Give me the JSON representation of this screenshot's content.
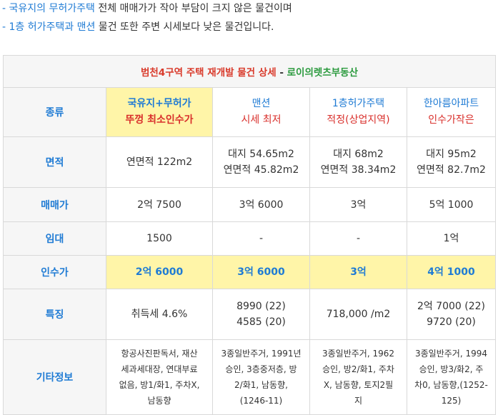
{
  "intro": [
    {
      "highlight": "- 국유지의 무허가주택",
      "rest": " 전체 매매가가 작아 부담이 크지 않은 물건이며"
    },
    {
      "highlight": "- 1층 허가주택과 맨션",
      "rest": " 물건 또한 주변 시세보다 낮은 물건입니다."
    }
  ],
  "table": {
    "title": {
      "red": "범천4구역 주택 재개발 물건 상세",
      "dash": " - ",
      "green": "로이의렛츠부동산"
    },
    "columns": [
      {
        "line1": "국유지+무허가",
        "line2": "뚜껑 최소인수가"
      },
      {
        "line1": "맨션",
        "line2": "시세 최저"
      },
      {
        "line1": "1층허가주택",
        "line2": "적정(상업지역)"
      },
      {
        "line1": "한아름아파트",
        "line2": "인수가작은"
      }
    ],
    "row_labels": {
      "kind": "종류",
      "area": "면적",
      "price": "매매가",
      "lease": "임대",
      "takeover": "인수가",
      "feature": "특징",
      "etc": "기타정보"
    },
    "area": [
      [
        "연면적 122m2"
      ],
      [
        "대지 54.65m2",
        "연면적 45.82m2"
      ],
      [
        "대지 68m2",
        "연면적 38.34m2"
      ],
      [
        "대지 95m2",
        "연면적 82.7m2"
      ]
    ],
    "price": [
      "2억 7500",
      "3억 6000",
      "3억",
      "5억 1000"
    ],
    "lease": [
      "1500",
      "-",
      "-",
      "1억"
    ],
    "takeover": [
      "2억 6000",
      "3억 6000",
      "3억",
      "4억 1000"
    ],
    "feature": [
      [
        "취득세 4.6%"
      ],
      [
        "8990 (22)",
        "4585 (20)"
      ],
      [
        "718,000 /m2"
      ],
      [
        "2억 7000 (22)",
        "9720 (20)"
      ]
    ],
    "etc": [
      [
        "항공사진판독서, 재산",
        "세과세대장, 연대부료",
        "없음, 방1/화1, 주차X,",
        "남동향"
      ],
      [
        "3종일반주거, 1991년",
        "승인, 3층중저층, 방",
        "2/화1, 남동향,",
        "(1246-11)"
      ],
      [
        "3종일반주거, 1962",
        "승인, 방2/화1, 주차",
        "X, 남동향, 토지2필",
        "지"
      ],
      [
        "3종일반주거, 1994",
        "승인, 방3/화2, 주",
        "차0, 남동향,(1252-",
        "125)"
      ]
    ]
  }
}
